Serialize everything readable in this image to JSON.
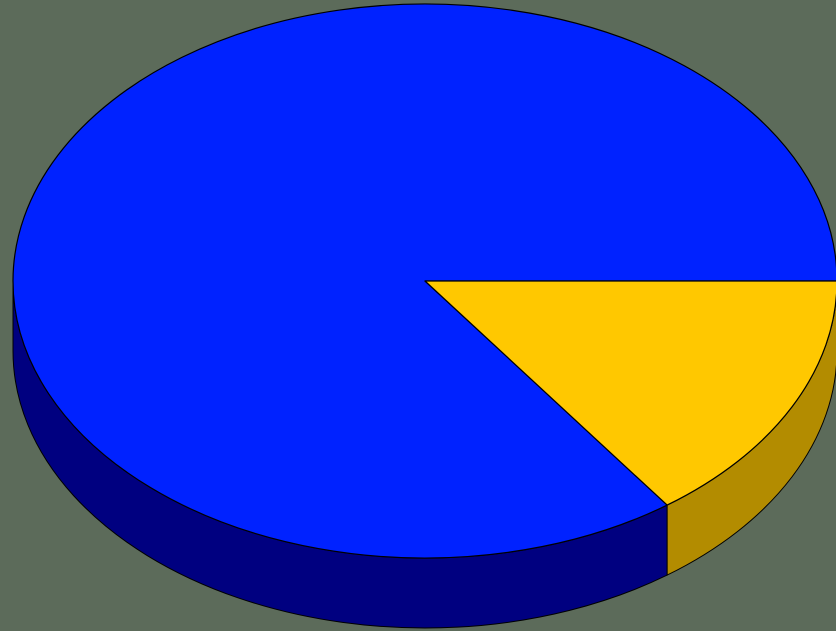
{
  "chart_data": {
    "type": "pie",
    "style": "3d",
    "legend": "none",
    "slices": [
      {
        "value": 85,
        "color": "#0022ff",
        "side_color": "#000080"
      },
      {
        "value": 15,
        "color": "#ffc800",
        "side_color": "#b38c00"
      }
    ]
  },
  "colors": {
    "background": "#5c6b5a",
    "outline": "#000000"
  }
}
